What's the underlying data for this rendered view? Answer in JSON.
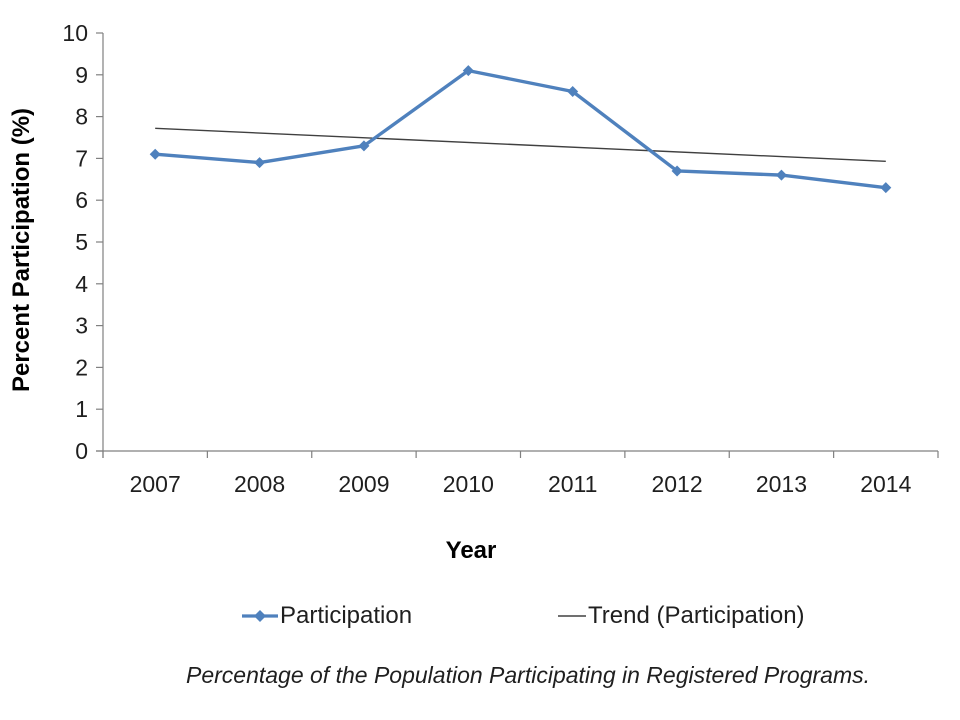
{
  "chart_data": {
    "type": "line",
    "title": "",
    "categories": [
      "2007",
      "2008",
      "2009",
      "2010",
      "2011",
      "2012",
      "2013",
      "2014"
    ],
    "series": [
      {
        "name": "Participation",
        "type": "line",
        "marker": "diamond",
        "color": "#4F81BD",
        "values": [
          7.1,
          6.9,
          7.3,
          9.1,
          8.6,
          6.7,
          6.6,
          6.3
        ]
      },
      {
        "name": "Trend (Participation)",
        "type": "trendline",
        "color": "#404040",
        "values": [
          7.72,
          6.93
        ]
      }
    ],
    "xlabel": "Year",
    "ylabel": "Percent Participation (%)",
    "ylim": [
      0,
      10
    ],
    "yticks": [
      0,
      1,
      2,
      3,
      4,
      5,
      6,
      7,
      8,
      9,
      10
    ],
    "grid": false,
    "legend_position": "bottom"
  },
  "caption": "Percentage of the Population Participating in Registered Programs.",
  "colors": {
    "axis": "#808080",
    "tick_label": "#1f1f1f",
    "series_blue": "#4F81BD",
    "trend_line": "#404040"
  }
}
